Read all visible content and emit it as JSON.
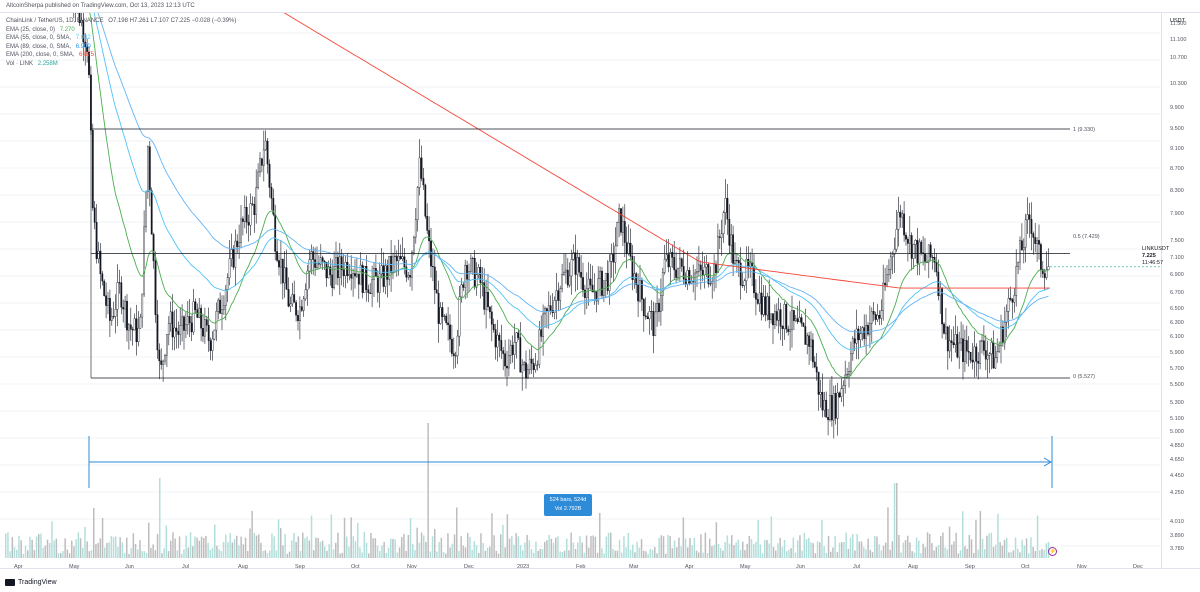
{
  "header": {
    "published": "AltcoinSherpa published on TradingView.com, Oct 13, 2023 12:13 UTC"
  },
  "legend": {
    "symbol_line": "ChainLink / TetherUS, 1D, BINANCE",
    "ohlc": "O7.198 H7.261 L7.107 C7.225 −0.028 (−0.39%)",
    "ema25": {
      "label": "EMA (25, close, 0)",
      "value": "7.270",
      "color": "#4caf50"
    },
    "ema55": {
      "label": "EMA (55, close, 0, SMA,",
      "value": "7.032",
      "color": "#4fc3f7"
    },
    "ema89": {
      "label": "EMA (89, close, 0, SMA,",
      "value": "6.900",
      "color": "#2196f3"
    },
    "ema200": {
      "label": "EMA (200, close, 0, SMA,",
      "value": "6.875",
      "color": "#f44336"
    },
    "vol": {
      "label": "Vol · LINK",
      "value": "2.258M",
      "color": "#26a69a"
    }
  },
  "axis": {
    "unit": "USDT",
    "y_ticks": [
      "11.500",
      "11.100",
      "10.700",
      "10.300",
      "9.900",
      "9.500",
      "9.100",
      "8.700",
      "8.300",
      "7.900",
      "7.500",
      "7.100",
      "6.900",
      "6.700",
      "6.500",
      "6.300",
      "6.100",
      "5.900",
      "5.700",
      "5.500",
      "5.300",
      "5.100",
      "5.000",
      "4.850",
      "4.650",
      "4.450",
      "4.250",
      "4.010",
      "3.890",
      "3.780"
    ],
    "x_ticks": [
      "Apr",
      "May",
      "Jun",
      "Jul",
      "Aug",
      "Sep",
      "Oct",
      "Nov",
      "Dec",
      "2023",
      "Feb",
      "Mar",
      "Apr",
      "May",
      "Jun",
      "Jul",
      "Aug",
      "Sep",
      "Oct",
      "Nov",
      "Dec"
    ]
  },
  "price_tag": {
    "symbol": "LINKUSDT",
    "price": "7.225",
    "countdown": "11:46:57"
  },
  "fib": [
    {
      "label": "1 (9.330)",
      "level": 9.33
    },
    {
      "label": "0.5 (7.429)",
      "level": 7.429
    },
    {
      "label": "0 (5.527)",
      "level": 5.527
    }
  ],
  "range_measure": {
    "line1": "524 bars, 524d",
    "line2": "Vol 2.792B"
  },
  "footer": {
    "brand": "TradingView"
  },
  "chart_data": {
    "type": "candlestick",
    "symbol": "LINKUSDT",
    "x_range": [
      "2022-04",
      "2023-12"
    ],
    "ylim": [
      3.78,
      11.8
    ],
    "fib_levels": [
      9.33,
      7.429,
      5.527
    ],
    "series": [
      {
        "name": "EMA (25, close, 0)",
        "last": 7.27
      },
      {
        "name": "EMA (55, close, 0, SMA,",
        "last": 7.032
      },
      {
        "name": "EMA (89, close, 0, SMA,",
        "last": 6.9
      },
      {
        "name": "EMA (200, close, 0, SMA,",
        "last": 6.875
      }
    ],
    "last_close": 7.225,
    "last_volume": "2.258M"
  }
}
